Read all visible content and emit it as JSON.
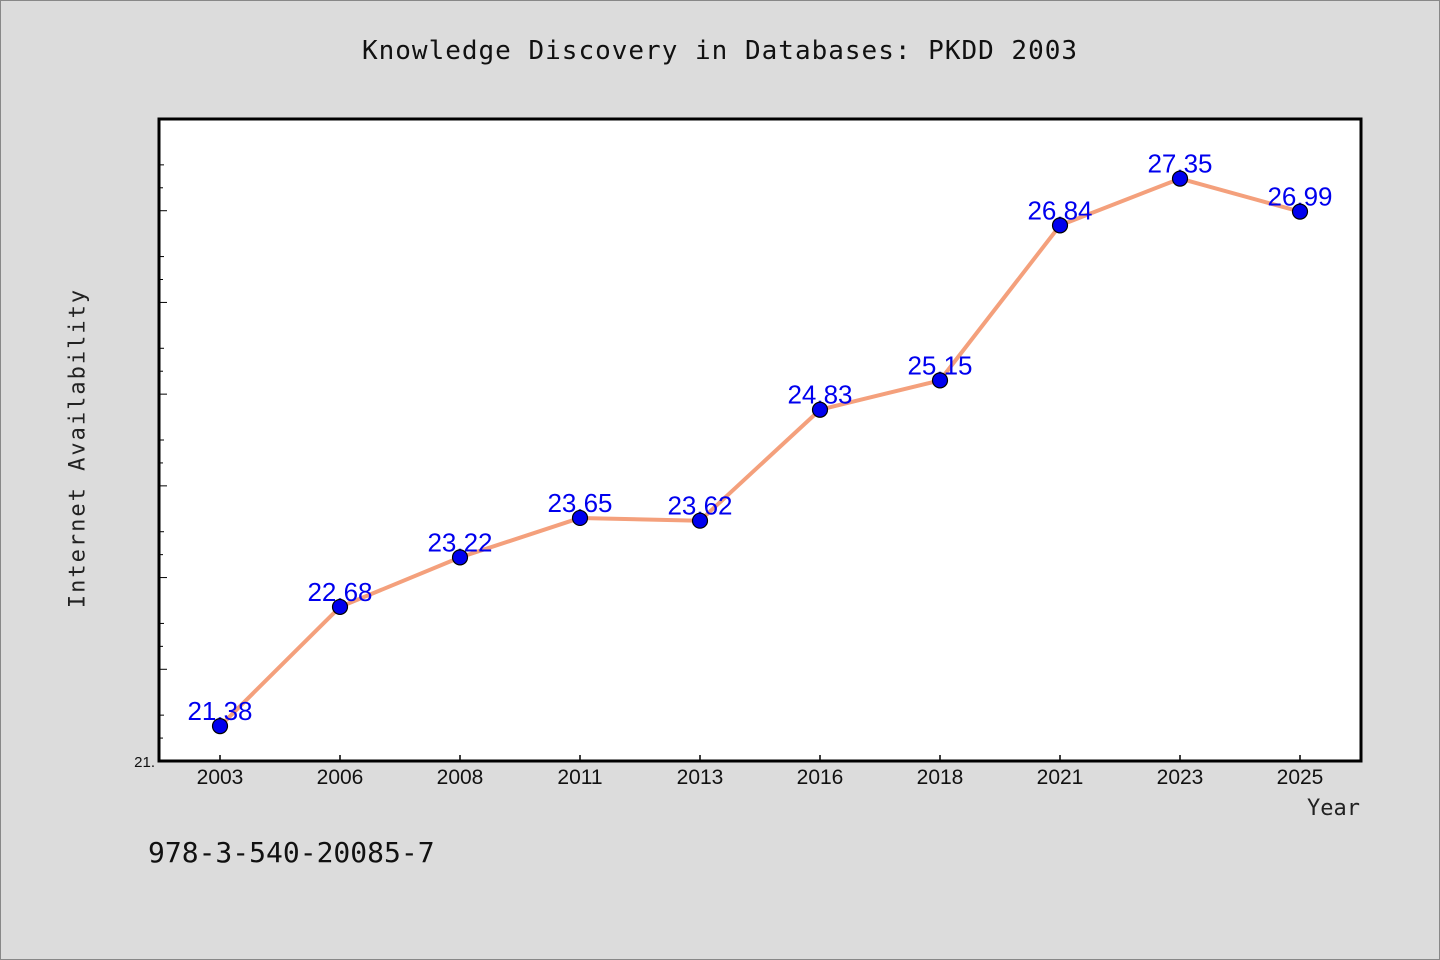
{
  "chart_data": {
    "type": "line",
    "title": "Knowledge Discovery in Databases: PKDD 2003",
    "xlabel": "Year",
    "ylabel": "Internet Availability",
    "categories": [
      "2003",
      "2006",
      "2008",
      "2011",
      "2013",
      "2016",
      "2018",
      "2021",
      "2023",
      "2025"
    ],
    "values": [
      21.38,
      22.68,
      23.22,
      23.65,
      23.62,
      24.83,
      25.15,
      26.84,
      27.35,
      26.99
    ],
    "value_labels": [
      "21.38",
      "22.68",
      "23.22",
      "23.65",
      "23.62",
      "24.83",
      "25.15",
      "26.84",
      "27.35",
      "26.99"
    ],
    "y_tick_label": "21.",
    "ylim": [
      21.0,
      28.0
    ],
    "grid": false,
    "line_color": "#f4a07c",
    "marker_color": "#0000ee",
    "label_color": "#0000ee"
  },
  "footer": {
    "id_text": "978-3-540-20085-7"
  }
}
